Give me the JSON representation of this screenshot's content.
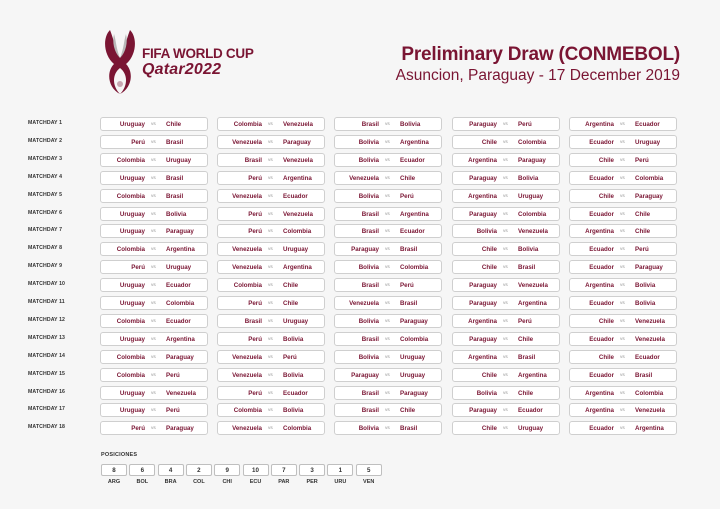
{
  "logo": {
    "line1": "FIFA WORLD CUP",
    "line2": "Qatar2022"
  },
  "header": {
    "title": "Preliminary Draw (CONMEBOL)",
    "subtitle": "Asuncion, Paraguay - 17 December 2019"
  },
  "vs_label": "vs",
  "matchdays": [
    {
      "label": "MATCHDAY 1",
      "matches": [
        [
          "Uruguay",
          "Chile"
        ],
        [
          "Colombia",
          "Venezuela"
        ],
        [
          "Brasil",
          "Bolivia"
        ],
        [
          "Paraguay",
          "Perú"
        ],
        [
          "Argentina",
          "Ecuador"
        ]
      ]
    },
    {
      "label": "MATCHDAY 2",
      "matches": [
        [
          "Perú",
          "Brasil"
        ],
        [
          "Venezuela",
          "Paraguay"
        ],
        [
          "Bolivia",
          "Argentina"
        ],
        [
          "Chile",
          "Colombia"
        ],
        [
          "Ecuador",
          "Uruguay"
        ]
      ]
    },
    {
      "label": "MATCHDAY 3",
      "matches": [
        [
          "Colombia",
          "Uruguay"
        ],
        [
          "Brasil",
          "Venezuela"
        ],
        [
          "Bolivia",
          "Ecuador"
        ],
        [
          "Argentina",
          "Paraguay"
        ],
        [
          "Chile",
          "Perú"
        ]
      ]
    },
    {
      "label": "MATCHDAY 4",
      "matches": [
        [
          "Uruguay",
          "Brasil"
        ],
        [
          "Perú",
          "Argentina"
        ],
        [
          "Venezuela",
          "Chile"
        ],
        [
          "Paraguay",
          "Bolivia"
        ],
        [
          "Ecuador",
          "Colombia"
        ]
      ]
    },
    {
      "label": "MATCHDAY 5",
      "matches": [
        [
          "Colombia",
          "Brasil"
        ],
        [
          "Venezuela",
          "Ecuador"
        ],
        [
          "Bolivia",
          "Perú"
        ],
        [
          "Argentina",
          "Uruguay"
        ],
        [
          "Chile",
          "Paraguay"
        ]
      ]
    },
    {
      "label": "MATCHDAY 6",
      "matches": [
        [
          "Uruguay",
          "Bolivia"
        ],
        [
          "Perú",
          "Venezuela"
        ],
        [
          "Brasil",
          "Argentina"
        ],
        [
          "Paraguay",
          "Colombia"
        ],
        [
          "Ecuador",
          "Chile"
        ]
      ]
    },
    {
      "label": "MATCHDAY 7",
      "matches": [
        [
          "Uruguay",
          "Paraguay"
        ],
        [
          "Perú",
          "Colombia"
        ],
        [
          "Brasil",
          "Ecuador"
        ],
        [
          "Bolivia",
          "Venezuela"
        ],
        [
          "Argentina",
          "Chile"
        ]
      ]
    },
    {
      "label": "MATCHDAY 8",
      "matches": [
        [
          "Colombia",
          "Argentina"
        ],
        [
          "Venezuela",
          "Uruguay"
        ],
        [
          "Paraguay",
          "Brasil"
        ],
        [
          "Chile",
          "Bolivia"
        ],
        [
          "Ecuador",
          "Perú"
        ]
      ]
    },
    {
      "label": "MATCHDAY 9",
      "matches": [
        [
          "Perú",
          "Uruguay"
        ],
        [
          "Venezuela",
          "Argentina"
        ],
        [
          "Bolivia",
          "Colombia"
        ],
        [
          "Chile",
          "Brasil"
        ],
        [
          "Ecuador",
          "Paraguay"
        ]
      ]
    },
    {
      "label": "MATCHDAY 10",
      "matches": [
        [
          "Uruguay",
          "Ecuador"
        ],
        [
          "Colombia",
          "Chile"
        ],
        [
          "Brasil",
          "Perú"
        ],
        [
          "Paraguay",
          "Venezuela"
        ],
        [
          "Argentina",
          "Bolivia"
        ]
      ]
    },
    {
      "label": "MATCHDAY 11",
      "matches": [
        [
          "Uruguay",
          "Colombia"
        ],
        [
          "Perú",
          "Chile"
        ],
        [
          "Venezuela",
          "Brasil"
        ],
        [
          "Paraguay",
          "Argentina"
        ],
        [
          "Ecuador",
          "Bolivia"
        ]
      ]
    },
    {
      "label": "MATCHDAY 12",
      "matches": [
        [
          "Colombia",
          "Ecuador"
        ],
        [
          "Brasil",
          "Uruguay"
        ],
        [
          "Bolivia",
          "Paraguay"
        ],
        [
          "Argentina",
          "Perú"
        ],
        [
          "Chile",
          "Venezuela"
        ]
      ]
    },
    {
      "label": "MATCHDAY 13",
      "matches": [
        [
          "Uruguay",
          "Argentina"
        ],
        [
          "Perú",
          "Bolivia"
        ],
        [
          "Brasil",
          "Colombia"
        ],
        [
          "Paraguay",
          "Chile"
        ],
        [
          "Ecuador",
          "Venezuela"
        ]
      ]
    },
    {
      "label": "MATCHDAY 14",
      "matches": [
        [
          "Colombia",
          "Paraguay"
        ],
        [
          "Venezuela",
          "Perú"
        ],
        [
          "Bolivia",
          "Uruguay"
        ],
        [
          "Argentina",
          "Brasil"
        ],
        [
          "Chile",
          "Ecuador"
        ]
      ]
    },
    {
      "label": "MATCHDAY 15",
      "matches": [
        [
          "Colombia",
          "Perú"
        ],
        [
          "Venezuela",
          "Bolivia"
        ],
        [
          "Paraguay",
          "Uruguay"
        ],
        [
          "Chile",
          "Argentina"
        ],
        [
          "Ecuador",
          "Brasil"
        ]
      ]
    },
    {
      "label": "MATCHDAY 16",
      "matches": [
        [
          "Uruguay",
          "Venezuela"
        ],
        [
          "Perú",
          "Ecuador"
        ],
        [
          "Brasil",
          "Paraguay"
        ],
        [
          "Bolivia",
          "Chile"
        ],
        [
          "Argentina",
          "Colombia"
        ]
      ]
    },
    {
      "label": "MATCHDAY 17",
      "matches": [
        [
          "Uruguay",
          "Perú"
        ],
        [
          "Colombia",
          "Bolivia"
        ],
        [
          "Brasil",
          "Chile"
        ],
        [
          "Paraguay",
          "Ecuador"
        ],
        [
          "Argentina",
          "Venezuela"
        ]
      ]
    },
    {
      "label": "MATCHDAY 18",
      "matches": [
        [
          "Perú",
          "Paraguay"
        ],
        [
          "Venezuela",
          "Colombia"
        ],
        [
          "Bolivia",
          "Brasil"
        ],
        [
          "Chile",
          "Uruguay"
        ],
        [
          "Ecuador",
          "Argentina"
        ]
      ]
    }
  ],
  "positions": {
    "title": "POSICIONES",
    "items": [
      {
        "value": "8",
        "code": "ARG"
      },
      {
        "value": "6",
        "code": "BOL"
      },
      {
        "value": "4",
        "code": "BRA"
      },
      {
        "value": "2",
        "code": "COL"
      },
      {
        "value": "9",
        "code": "CHI"
      },
      {
        "value": "10",
        "code": "ECU"
      },
      {
        "value": "7",
        "code": "PAR"
      },
      {
        "value": "3",
        "code": "PER"
      },
      {
        "value": "1",
        "code": "URU"
      },
      {
        "value": "5",
        "code": "VEN"
      }
    ]
  },
  "colors": {
    "accent": "#7a1533"
  }
}
